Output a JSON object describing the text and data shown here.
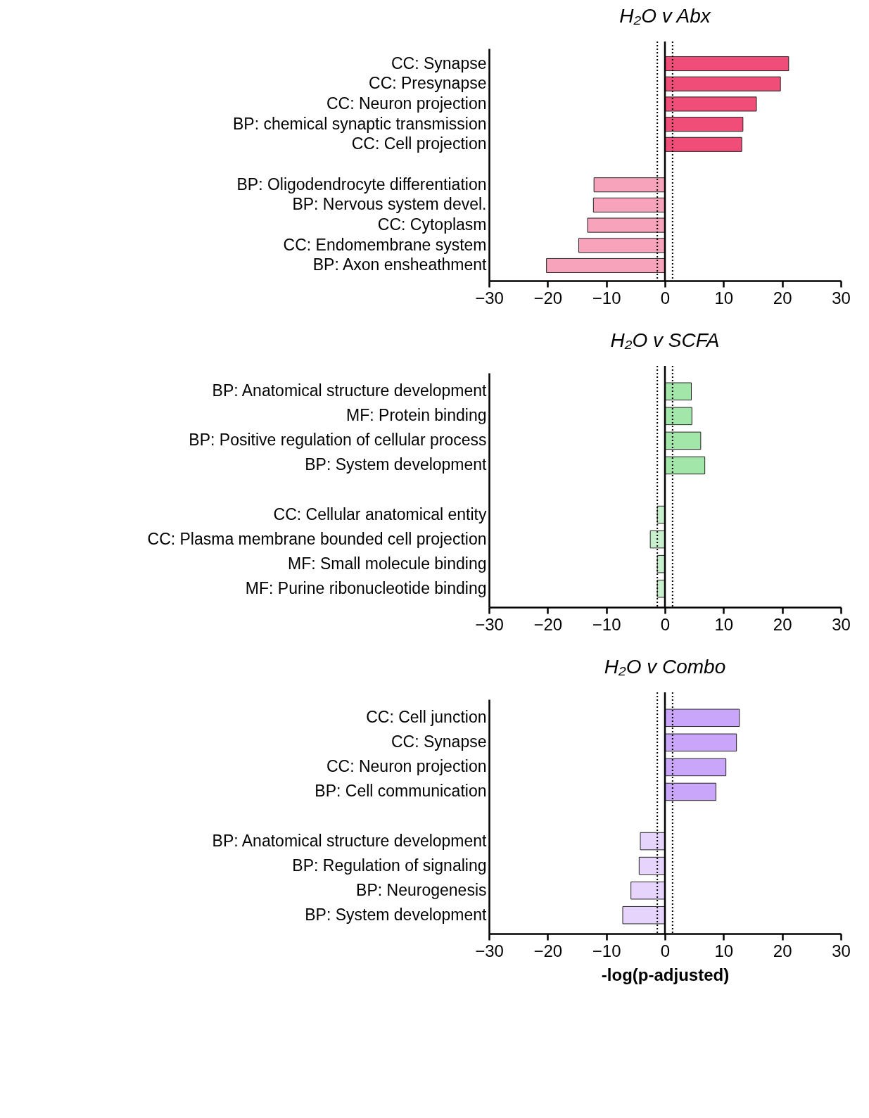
{
  "chart_data": [
    {
      "type": "bar",
      "orientation": "horizontal",
      "title": "H₂O v Abx",
      "categories": [
        "CC: Synapse",
        "CC: Presynapse",
        "CC: Neuron projection",
        "BP: chemical synaptic transmission",
        "CC: Cell projection",
        null,
        "BP: Oligodendrocyte differentiation",
        "BP: Nervous system devel.",
        "CC: Cytoplasm",
        "CC: Endomembrane system",
        "BP: Axon ensheathment"
      ],
      "values": [
        21.1,
        19.7,
        15.6,
        13.3,
        13.1,
        null,
        -12.1,
        -12.2,
        -13.2,
        -14.7,
        -20.2
      ],
      "colors": [
        "#f04e78",
        "#f04e78",
        "#f04e78",
        "#f04e78",
        "#f04e78",
        null,
        "#f7a3bb",
        "#f7a3bb",
        "#f7a3bb",
        "#f7a3bb",
        "#f7a3bb"
      ],
      "xlim": [
        -30,
        30
      ],
      "xticks": [
        -30,
        -20,
        -10,
        0,
        10,
        20,
        30
      ],
      "grid": false,
      "legend": false,
      "ref_lines": [
        {
          "axis": "x",
          "value": -1.3,
          "line_style": "dotted"
        },
        {
          "axis": "x",
          "value": 0,
          "line_style": "solid"
        },
        {
          "axis": "x",
          "value": 1.3,
          "line_style": "dotted"
        }
      ]
    },
    {
      "type": "bar",
      "orientation": "horizontal",
      "title": "H₂O v SCFA",
      "categories": [
        "BP: Anatomical structure development",
        "MF: Protein binding",
        "BP: Positive regulation of cellular process",
        "BP: System development",
        null,
        "CC: Cellular anatomical entity",
        "CC: Plasma membrane bounded cell projection",
        "MF: Small molecule binding",
        "MF: Purine ribonucleotide binding"
      ],
      "values": [
        4.5,
        4.6,
        6.1,
        6.8,
        null,
        -1.3,
        -2.5,
        -1.3,
        -1.3
      ],
      "colors": [
        "#a3e6a9",
        "#a3e6a9",
        "#a3e6a9",
        "#a3e6a9",
        null,
        "#c9f0cc",
        "#c9f0cc",
        "#c9f0cc",
        "#c9f0cc"
      ],
      "xlim": [
        -30,
        30
      ],
      "xticks": [
        -30,
        -20,
        -10,
        0,
        10,
        20,
        30
      ],
      "grid": false,
      "legend": false,
      "ref_lines": [
        {
          "axis": "x",
          "value": -1.3,
          "line_style": "dotted"
        },
        {
          "axis": "x",
          "value": 0,
          "line_style": "solid"
        },
        {
          "axis": "x",
          "value": 1.3,
          "line_style": "dotted"
        }
      ]
    },
    {
      "type": "bar",
      "orientation": "horizontal",
      "title": "H₂O v Combo",
      "xlabel": "-log(p-adjusted)",
      "categories": [
        "CC: Cell junction",
        "CC: Synapse",
        "CC: Neuron projection",
        "BP: Cell communication",
        null,
        "BP: Anatomical structure development",
        "BP: Regulation of signaling",
        "BP: Neurogenesis",
        "BP: System development"
      ],
      "values": [
        12.7,
        12.2,
        10.4,
        8.7,
        null,
        -4.2,
        -4.4,
        -5.8,
        -7.2
      ],
      "colors": [
        "#c9a6fa",
        "#c9a6fa",
        "#c9a6fa",
        "#c9a6fa",
        null,
        "#e6d4fd",
        "#e6d4fd",
        "#e6d4fd",
        "#e6d4fd"
      ],
      "xlim": [
        -30,
        30
      ],
      "xticks": [
        -30,
        -20,
        -10,
        0,
        10,
        20,
        30
      ],
      "grid": false,
      "legend": false,
      "ref_lines": [
        {
          "axis": "x",
          "value": -1.3,
          "line_style": "dotted"
        },
        {
          "axis": "x",
          "value": 0,
          "line_style": "solid"
        },
        {
          "axis": "x",
          "value": 1.3,
          "line_style": "dotted"
        }
      ]
    }
  ]
}
